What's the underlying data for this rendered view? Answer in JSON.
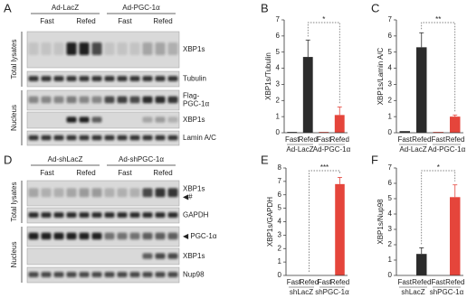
{
  "blots": [
    {
      "panel": "A",
      "groups": [
        "Ad-LacZ",
        "Ad-PGC-1α"
      ],
      "conditions": [
        "Fast",
        "Refed",
        "Fast",
        "Refed"
      ],
      "sections": [
        "Total lysates",
        "Nucleus"
      ],
      "bands": [
        [
          "XBP1s"
        ],
        [
          "Tubulin"
        ],
        [
          "Flag-",
          "PGC-1α"
        ],
        [
          "XBP1s"
        ],
        [
          "Lamin A/C"
        ]
      ]
    },
    {
      "panel": "D",
      "groups": [
        "Ad-shLacZ",
        "Ad-shPGC-1α"
      ],
      "conditions": [
        "Fast",
        "Refed",
        "Fast",
        "Refed"
      ],
      "sections": [
        "Total lysates",
        "Nucleus"
      ],
      "bands": [
        [
          "XBP1s",
          "◀#"
        ],
        [
          "GAPDH"
        ],
        [
          "◀ PGC-1α"
        ],
        [
          "XBP1s"
        ],
        [
          "Nup98"
        ]
      ]
    }
  ],
  "chart_data": [
    {
      "type": "bar",
      "panel": "B",
      "ylabel": "XBP1s/Tubulin",
      "categories": [
        "Fast",
        "Refed",
        "Fast",
        "Refed"
      ],
      "groups": [
        "Ad-LacZ",
        "Ad-PGC-1α"
      ],
      "values": [
        0.05,
        4.7,
        0.05,
        1.1
      ],
      "errors": [
        null,
        1.05,
        null,
        0.5
      ],
      "colors": [
        "#2b2b2b",
        "#2b2b2b",
        "#e5453b",
        "#e5453b"
      ],
      "significance": "*",
      "ylim": [
        0,
        7
      ],
      "yticks": [
        0,
        1,
        2,
        3,
        4,
        5,
        6,
        7
      ]
    },
    {
      "type": "bar",
      "panel": "C",
      "ylabel": "XBP1s/Lamin A/C",
      "categories": [
        "Fast",
        "Refed",
        "Fast",
        "Refed"
      ],
      "groups": [
        "Ad-LacZ",
        "Ad-PGC-1α"
      ],
      "values": [
        0.1,
        5.3,
        0.05,
        1.0
      ],
      "errors": [
        null,
        0.9,
        null,
        0.1
      ],
      "colors": [
        "#2b2b2b",
        "#2b2b2b",
        "#e5453b",
        "#e5453b"
      ],
      "significance": "**",
      "ylim": [
        0,
        7
      ],
      "yticks": [
        0,
        1,
        2,
        3,
        4,
        5,
        6,
        7
      ]
    },
    {
      "type": "bar",
      "panel": "E",
      "ylabel": "XBP1s/GAPDH",
      "categories": [
        "Fast",
        "Refed",
        "Fast",
        "Refed"
      ],
      "groups": [
        "shLacZ",
        "shPGC-1α"
      ],
      "values": [
        0,
        0,
        0,
        6.8
      ],
      "errors": [
        null,
        null,
        null,
        0.5
      ],
      "colors": [
        "#2b2b2b",
        "#2b2b2b",
        "#e5453b",
        "#e5453b"
      ],
      "significance": "***",
      "ylim": [
        0,
        8
      ],
      "yticks": [
        0,
        1,
        2,
        3,
        4,
        5,
        6,
        7,
        8
      ]
    },
    {
      "type": "bar",
      "panel": "F",
      "ylabel": "XBP1s/Nup98",
      "categories": [
        "Fast",
        "Refed",
        "Fast",
        "Refed"
      ],
      "groups": [
        "shLacZ",
        "shPGC-1α"
      ],
      "values": [
        0,
        1.4,
        0,
        5.1
      ],
      "errors": [
        null,
        0.4,
        null,
        0.8
      ],
      "colors": [
        "#2b2b2b",
        "#2b2b2b",
        "#e5453b",
        "#e5453b"
      ],
      "significance": "*",
      "ylim": [
        0,
        7
      ],
      "yticks": [
        0,
        1,
        2,
        3,
        4,
        5,
        6,
        7
      ]
    }
  ]
}
